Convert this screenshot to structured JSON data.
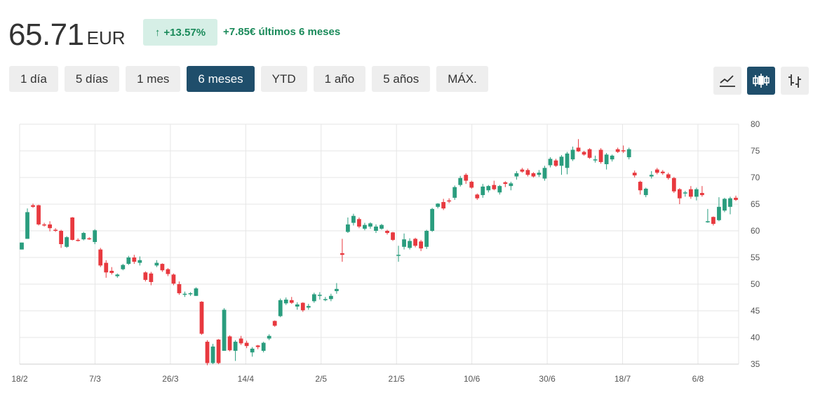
{
  "quote": {
    "price": "65.71",
    "currency": "EUR",
    "change_pct": "+13.57%",
    "change_abs_text": "+7.85€ últimos 6 meses"
  },
  "ranges": [
    "1 día",
    "5 días",
    "1 mes",
    "6 meses",
    "YTD",
    "1 año",
    "5 años",
    "MÁX."
  ],
  "active_range": "6 meses",
  "view_modes": [
    {
      "name": "line-chart-icon",
      "active": false
    },
    {
      "name": "candlestick-icon",
      "active": true
    },
    {
      "name": "ohlc-bars-icon",
      "active": false
    }
  ],
  "colors": {
    "up": "#2a9d7e",
    "down": "#e8393f",
    "accent": "#1f4e6b",
    "badge_bg": "#d6efe6",
    "change_text": "#1a8a5a"
  },
  "chart_data": {
    "type": "candlestick",
    "x_labels": [
      "18/2",
      "7/3",
      "26/3",
      "14/4",
      "2/5",
      "21/5",
      "10/6",
      "30/6",
      "18/7",
      "6/8"
    ],
    "y_ticks": [
      35,
      40,
      45,
      50,
      55,
      60,
      65,
      70,
      75,
      80
    ],
    "ylim": [
      35,
      80
    ],
    "y_axis_position": "right",
    "grid": true,
    "candles": [
      [
        57.8,
        57.8,
        56.5,
        56.5,
        "u"
      ],
      [
        63.5,
        64.2,
        58.5,
        58.5,
        "u"
      ],
      [
        64.8,
        65.1,
        64.3,
        64.5,
        "d"
      ],
      [
        64.8,
        64.9,
        61.0,
        61.2,
        "d"
      ],
      [
        61.2,
        61.5,
        60.8,
        61.0,
        "d"
      ],
      [
        61.2,
        61.8,
        59.9,
        60.5,
        "d"
      ],
      [
        60.2,
        60.5,
        59.8,
        60.0,
        "d"
      ],
      [
        60.0,
        60.2,
        56.8,
        57.5,
        "d"
      ],
      [
        57.0,
        59.0,
        56.8,
        58.8,
        "u"
      ],
      [
        62.5,
        62.6,
        58.2,
        58.3,
        "d"
      ],
      [
        58.3,
        58.6,
        58.0,
        58.3,
        "d"
      ],
      [
        58.4,
        59.8,
        58.2,
        59.6,
        "u"
      ],
      [
        58.6,
        58.8,
        58.3,
        58.5,
        "d"
      ],
      [
        57.9,
        60.3,
        57.5,
        60.1,
        "u"
      ],
      [
        56.5,
        56.8,
        53.2,
        53.5,
        "d"
      ],
      [
        54.0,
        54.5,
        51.2,
        52.2,
        "d"
      ],
      [
        52.5,
        53.2,
        51.8,
        52.1,
        "d"
      ],
      [
        51.8,
        52.0,
        51.2,
        51.5,
        "u"
      ],
      [
        52.8,
        53.8,
        52.6,
        53.6,
        "u"
      ],
      [
        53.8,
        55.3,
        53.6,
        55.0,
        "u"
      ],
      [
        55.0,
        55.5,
        53.8,
        54.2,
        "d"
      ],
      [
        54.0,
        55.2,
        53.5,
        54.5,
        "u"
      ],
      [
        52.2,
        52.4,
        50.5,
        50.8,
        "d"
      ],
      [
        52.0,
        52.3,
        49.8,
        50.4,
        "d"
      ],
      [
        53.5,
        54.5,
        53.2,
        54.0,
        "u"
      ],
      [
        53.8,
        53.9,
        52.3,
        52.6,
        "d"
      ],
      [
        52.8,
        53.0,
        51.5,
        51.9,
        "d"
      ],
      [
        51.8,
        52.0,
        49.8,
        50.1,
        "d"
      ],
      [
        50.0,
        50.5,
        48.0,
        48.3,
        "d"
      ],
      [
        48.0,
        48.6,
        47.6,
        48.2,
        "u"
      ],
      [
        48.2,
        48.5,
        47.8,
        48.3,
        "u"
      ],
      [
        47.8,
        49.4,
        47.8,
        49.2,
        "u"
      ],
      [
        46.7,
        46.8,
        40.5,
        40.7,
        "d"
      ],
      [
        39.2,
        39.5,
        34.8,
        35.2,
        "d"
      ],
      [
        35.2,
        38.8,
        35.0,
        38.3,
        "u"
      ],
      [
        39.6,
        39.7,
        35.0,
        35.2,
        "d"
      ],
      [
        37.5,
        45.5,
        37.5,
        45.2,
        "u"
      ],
      [
        40.2,
        40.4,
        37.4,
        37.6,
        "d"
      ],
      [
        37.5,
        39.5,
        35.6,
        39.2,
        "u"
      ],
      [
        39.8,
        40.3,
        38.6,
        38.9,
        "d"
      ],
      [
        39.0,
        39.4,
        38.0,
        38.4,
        "d"
      ],
      [
        37.2,
        38.2,
        36.4,
        37.9,
        "u"
      ],
      [
        38.5,
        38.6,
        37.8,
        38.2,
        "d"
      ],
      [
        37.5,
        39.2,
        37.2,
        39.0,
        "u"
      ],
      [
        39.8,
        40.6,
        39.5,
        40.3,
        "u"
      ],
      [
        43.1,
        43.2,
        42.0,
        42.2,
        "d"
      ],
      [
        44.0,
        47.3,
        43.8,
        47.0,
        "u"
      ],
      [
        46.4,
        47.5,
        46.1,
        47.1,
        "u"
      ],
      [
        47.0,
        47.6,
        46.3,
        46.5,
        "d"
      ],
      [
        45.8,
        46.6,
        45.2,
        46.2,
        "u"
      ],
      [
        46.5,
        46.6,
        44.8,
        45.1,
        "d"
      ],
      [
        45.9,
        46.3,
        45.2,
        45.6,
        "u"
      ],
      [
        46.8,
        48.4,
        46.5,
        48.1,
        "u"
      ],
      [
        47.8,
        48.5,
        47.1,
        48.0,
        "u"
      ],
      [
        47.2,
        47.6,
        46.8,
        47.1,
        "u"
      ],
      [
        47.2,
        48.2,
        46.8,
        47.8,
        "u"
      ],
      [
        48.7,
        50.2,
        48.2,
        49.1,
        "u"
      ],
      [
        55.8,
        58.5,
        54.2,
        55.5,
        "d"
      ],
      [
        59.8,
        62.5,
        59.6,
        61.2,
        "u"
      ],
      [
        61.5,
        63.2,
        61.0,
        62.8,
        "u"
      ],
      [
        62.2,
        62.5,
        60.5,
        60.8,
        "d"
      ],
      [
        60.4,
        61.5,
        60.1,
        61.1,
        "u"
      ],
      [
        60.8,
        61.6,
        60.4,
        61.4,
        "u"
      ],
      [
        60.0,
        61.2,
        59.6,
        60.8,
        "u"
      ],
      [
        60.4,
        61.3,
        60.2,
        61.1,
        "u"
      ],
      [
        60.0,
        60.2,
        59.3,
        59.6,
        "d"
      ],
      [
        59.7,
        59.8,
        58.1,
        58.3,
        "d"
      ],
      [
        55.4,
        57.2,
        54.2,
        55.5,
        "u"
      ],
      [
        57.0,
        59.5,
        56.5,
        58.4,
        "u"
      ],
      [
        56.8,
        58.6,
        56.5,
        58.1,
        "u"
      ],
      [
        58.5,
        58.7,
        56.9,
        57.2,
        "d"
      ],
      [
        58.0,
        58.3,
        56.2,
        56.7,
        "d"
      ],
      [
        57.0,
        60.2,
        56.6,
        60.0,
        "u"
      ],
      [
        60.0,
        64.3,
        59.8,
        64.1,
        "u"
      ],
      [
        64.5,
        65.2,
        64.2,
        65.1,
        "u"
      ],
      [
        65.4,
        66.0,
        63.9,
        64.2,
        "d"
      ],
      [
        65.7,
        66.1,
        65.2,
        65.6,
        "d"
      ],
      [
        66.2,
        68.5,
        65.8,
        68.2,
        "u"
      ],
      [
        68.6,
        70.3,
        68.3,
        69.9,
        "u"
      ],
      [
        70.5,
        70.8,
        68.8,
        69.4,
        "d"
      ],
      [
        69.2,
        69.4,
        67.9,
        68.1,
        "d"
      ],
      [
        66.8,
        67.0,
        65.8,
        66.1,
        "d"
      ],
      [
        66.7,
        68.8,
        66.2,
        68.3,
        "u"
      ],
      [
        67.6,
        68.6,
        67.2,
        68.4,
        "u"
      ],
      [
        68.6,
        69.4,
        67.6,
        67.8,
        "d"
      ],
      [
        67.2,
        68.6,
        66.8,
        68.4,
        "u"
      ],
      [
        69.1,
        69.3,
        68.2,
        68.8,
        "d"
      ],
      [
        68.4,
        69.2,
        67.6,
        68.9,
        "u"
      ],
      [
        70.2,
        71.2,
        69.6,
        70.8,
        "u"
      ],
      [
        71.5,
        71.8,
        70.9,
        71.1,
        "d"
      ],
      [
        71.4,
        71.7,
        70.2,
        70.5,
        "d"
      ],
      [
        70.8,
        71.0,
        70.0,
        70.2,
        "d"
      ],
      [
        70.5,
        71.4,
        70.1,
        70.9,
        "u"
      ],
      [
        69.8,
        72.2,
        69.4,
        71.8,
        "u"
      ],
      [
        72.3,
        73.8,
        71.9,
        73.5,
        "u"
      ],
      [
        73.2,
        73.5,
        72.0,
        72.2,
        "d"
      ],
      [
        72.2,
        74.2,
        70.5,
        73.9,
        "u"
      ],
      [
        71.8,
        74.8,
        70.6,
        74.5,
        "u"
      ],
      [
        73.4,
        75.8,
        73.1,
        75.2,
        "u"
      ],
      [
        75.6,
        77.2,
        74.8,
        74.9,
        "d"
      ],
      [
        74.8,
        75.0,
        74.1,
        74.3,
        "d"
      ],
      [
        75.3,
        75.5,
        73.5,
        73.7,
        "d"
      ],
      [
        73.4,
        74.1,
        72.8,
        73.2,
        "u"
      ],
      [
        75.2,
        75.5,
        72.6,
        72.9,
        "d"
      ],
      [
        72.5,
        74.6,
        71.5,
        74.3,
        "u"
      ],
      [
        73.4,
        74.3,
        73.0,
        74.1,
        "u"
      ],
      [
        75.3,
        75.6,
        74.6,
        74.8,
        "d"
      ],
      [
        74.9,
        76.0,
        74.6,
        75.1,
        "d"
      ],
      [
        73.8,
        75.6,
        73.4,
        75.3,
        "u"
      ],
      [
        70.9,
        71.3,
        70.0,
        70.4,
        "d"
      ],
      [
        69.2,
        69.4,
        66.8,
        67.6,
        "d"
      ],
      [
        66.7,
        68.1,
        66.3,
        67.9,
        "u"
      ],
      [
        70.2,
        71.2,
        69.8,
        70.5,
        "u"
      ],
      [
        71.5,
        71.8,
        70.6,
        70.9,
        "d"
      ],
      [
        71.1,
        71.4,
        70.5,
        70.8,
        "d"
      ],
      [
        70.6,
        70.9,
        69.6,
        69.9,
        "d"
      ],
      [
        69.9,
        70.1,
        67.1,
        67.4,
        "d"
      ],
      [
        67.8,
        68.0,
        65.0,
        66.1,
        "d"
      ],
      [
        67.2,
        67.5,
        66.4,
        67.0,
        "u"
      ],
      [
        67.8,
        68.4,
        66.0,
        66.4,
        "d"
      ],
      [
        66.4,
        68.1,
        65.7,
        67.8,
        "u"
      ],
      [
        67.1,
        68.4,
        66.4,
        66.7,
        "d"
      ],
      [
        61.6,
        64.1,
        61.5,
        61.8,
        "u"
      ],
      [
        62.6,
        62.7,
        61.0,
        61.3,
        "d"
      ],
      [
        62.0,
        66.3,
        61.8,
        64.5,
        "u"
      ],
      [
        63.8,
        66.2,
        63.5,
        66.0,
        "u"
      ],
      [
        64.5,
        66.4,
        63.1,
        66.1,
        "u"
      ],
      [
        66.2,
        66.6,
        65.6,
        65.8,
        "d"
      ]
    ]
  }
}
